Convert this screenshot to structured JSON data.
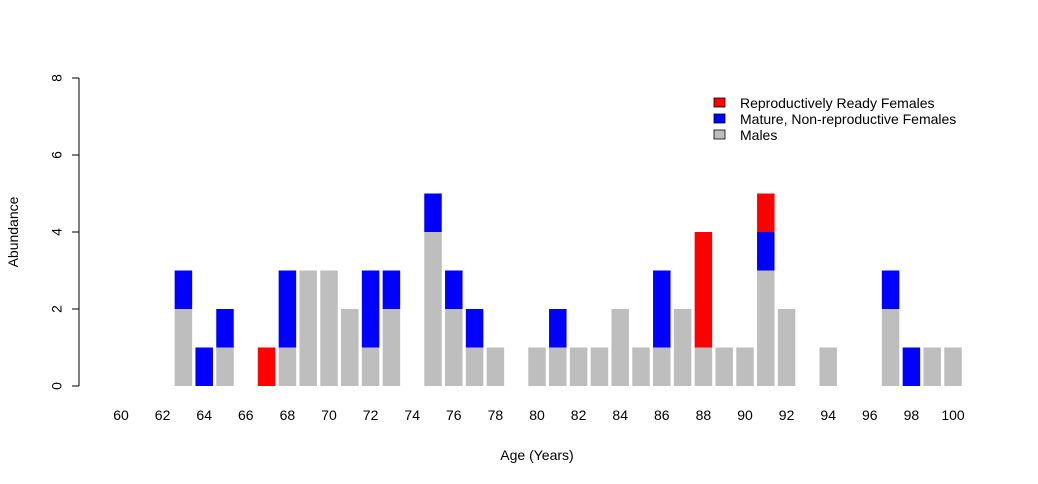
{
  "chart_data": {
    "type": "bar",
    "stacked": true,
    "xlabel": "Age (Years)",
    "ylabel": "Abundance",
    "ylim": [
      0,
      8
    ],
    "yticks": [
      0,
      2,
      4,
      6,
      8
    ],
    "xticks": [
      60,
      62,
      64,
      66,
      68,
      70,
      72,
      74,
      76,
      78,
      80,
      82,
      84,
      86,
      88,
      90,
      92,
      94,
      96,
      98,
      100
    ],
    "xrange": [
      60,
      100
    ],
    "grid": false,
    "legend_position": "top-right",
    "series": [
      {
        "name": "Males",
        "color": "#BEBEBE",
        "values": [
          0,
          0,
          0,
          2,
          0,
          1,
          0,
          0,
          1,
          3,
          3,
          2,
          1,
          2,
          0,
          4,
          2,
          1,
          1,
          0,
          1,
          1,
          1,
          1,
          2,
          1,
          1,
          2,
          1,
          1,
          1,
          3,
          2,
          0,
          1,
          0,
          0,
          2,
          0,
          1,
          1
        ]
      },
      {
        "name": "Mature, Non-reproductive Females",
        "color": "#0000FF",
        "values": [
          0,
          0,
          0,
          1,
          1,
          1,
          0,
          0,
          2,
          0,
          0,
          0,
          2,
          1,
          0,
          1,
          1,
          1,
          0,
          0,
          0,
          1,
          0,
          0,
          0,
          0,
          2,
          0,
          0,
          0,
          0,
          1,
          0,
          0,
          0,
          0,
          0,
          1,
          1,
          0,
          0
        ]
      },
      {
        "name": "Reproductively Ready Females",
        "color": "#FF0000",
        "values": [
          0,
          0,
          0,
          0,
          0,
          0,
          0,
          1,
          0,
          0,
          0,
          0,
          0,
          0,
          0,
          0,
          0,
          0,
          0,
          0,
          0,
          0,
          0,
          0,
          0,
          0,
          0,
          0,
          3,
          0,
          0,
          1,
          0,
          0,
          0,
          0,
          0,
          0,
          0,
          0,
          0
        ]
      }
    ],
    "legend": [
      {
        "label": "Reproductively Ready Females",
        "color": "#FF0000"
      },
      {
        "label": "Mature, Non-reproductive Females",
        "color": "#0000FF"
      },
      {
        "label": "Males",
        "color": "#BEBEBE"
      }
    ]
  }
}
